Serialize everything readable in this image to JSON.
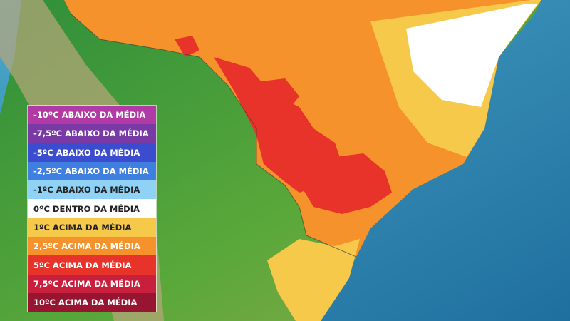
{
  "legend": {
    "items": [
      {
        "label": "-10ºC ABAIXO DA MÉDIA",
        "color": "#b23aa6"
      },
      {
        "label": "-7,5ºC ABAIXO DA MÉDIA",
        "color": "#7a3aa6"
      },
      {
        "label": "-5ºC ABAIXO DA MÉDIA",
        "color": "#3b4ccf"
      },
      {
        "label": "-2,5ºC ABAIXO DA MÉDIA",
        "color": "#3e7fe0"
      },
      {
        "label": "-1ºC ABAIXO DA MÉDIA",
        "color": "#8fd2f6"
      },
      {
        "label": "0ºC DENTRO DA MÉDIA",
        "color": "#ffffff"
      },
      {
        "label": "1ºC ACIMA DA MÉDIA",
        "color": "#f6c94b"
      },
      {
        "label": "2,5ºC ACIMA DA MÉDIA",
        "color": "#f5922b"
      },
      {
        "label": "5ºC ACIMA DA MÉDIA",
        "color": "#e8332a"
      },
      {
        "label": "7,5ºC ACIMA DA MÉDIA",
        "color": "#c8203c"
      },
      {
        "label": "10ºC ACIMA DA MÉDIA",
        "color": "#981531"
      }
    ]
  }
}
